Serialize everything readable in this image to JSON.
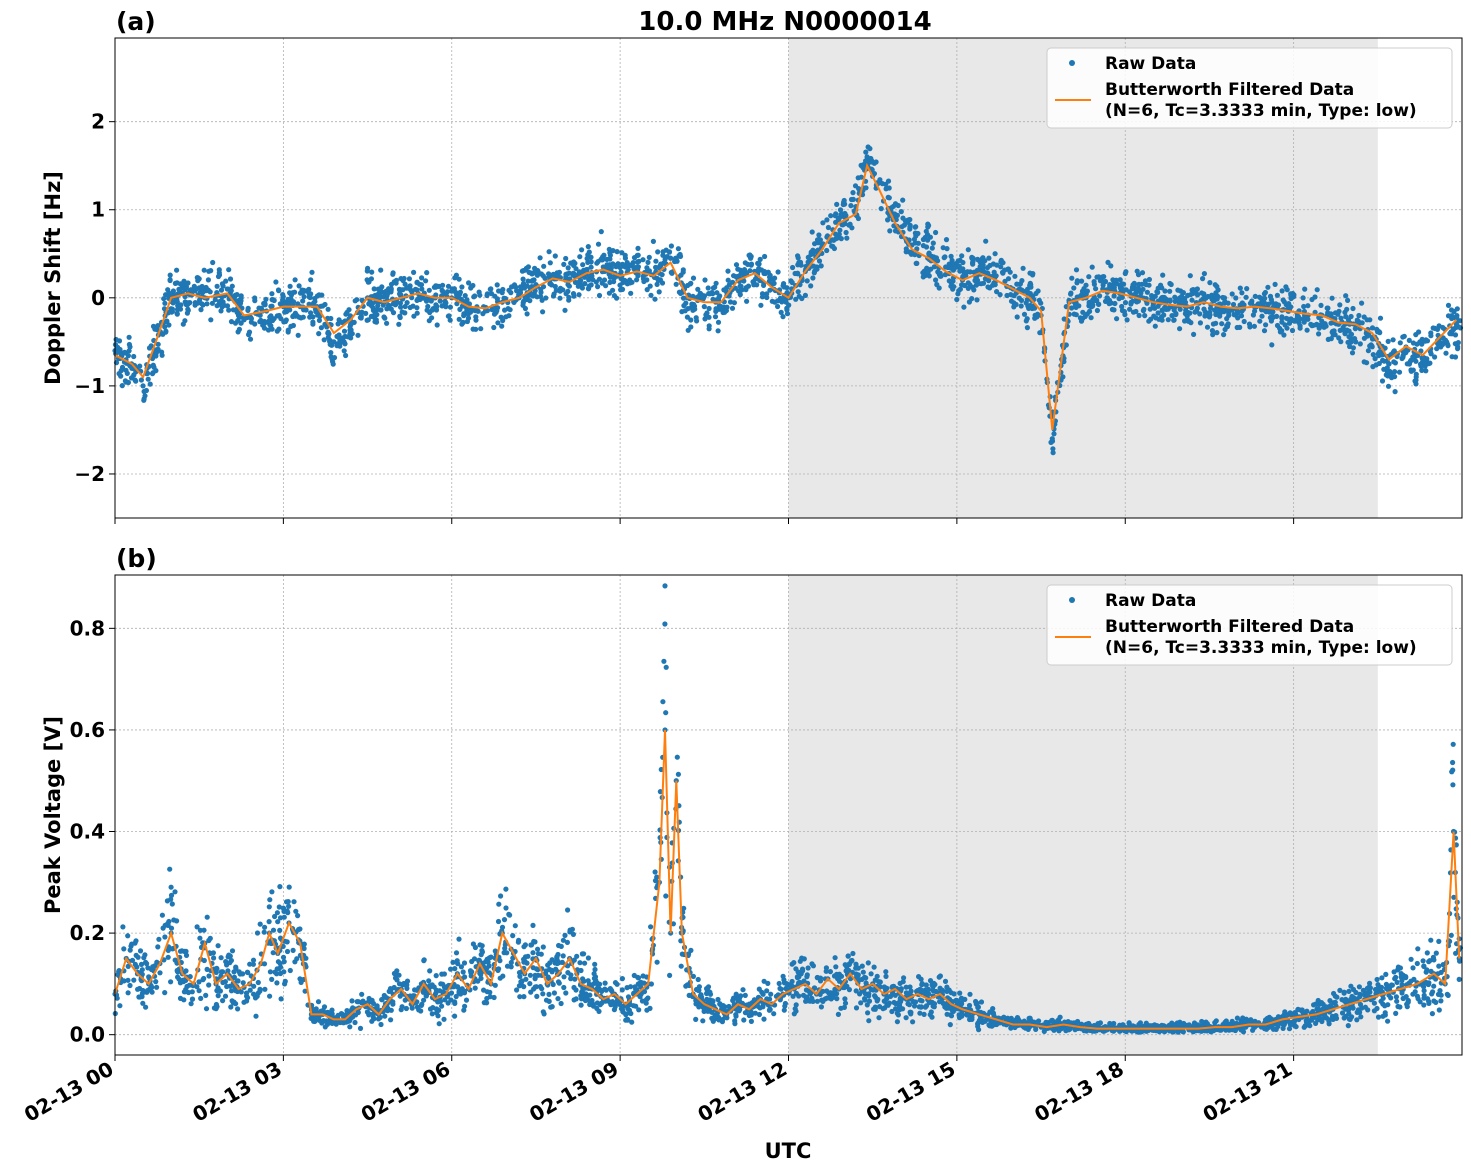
{
  "figure": {
    "title": "10.0 MHz N0000014",
    "xlabel": "UTC"
  },
  "colors": {
    "raw": "#1f77b4",
    "filtered": "#ff7f0e",
    "shade": "#e8e8e8",
    "grid": "#b0b0b0"
  },
  "chart_data": [
    {
      "type": "scatter",
      "panel_label": "(a)",
      "ylabel": "Doppler Shift [Hz]",
      "xlim": [
        "02-13 00:00",
        "02-14 00:00"
      ],
      "x_unit_hours_from": "02-13 00:00",
      "ylim": [
        -2.5,
        2.95
      ],
      "y_ticks": [
        -2,
        -1,
        0,
        1,
        2
      ],
      "y_tick_labels": [
        "−2",
        "−1",
        "0",
        "1",
        "2"
      ],
      "x_ticks": [
        "02-13 00",
        "02-13 03",
        "02-13 06",
        "02-13 09",
        "02-13 12",
        "02-13 15",
        "02-13 18",
        "02-13 21"
      ],
      "grid": true,
      "legend_position": "upper right",
      "shaded_interval": [
        "02-13 12:00",
        "02-13 22:30"
      ],
      "series": [
        {
          "name": "Raw Data",
          "kind": "dots",
          "x_hours": [
            0,
            0.3,
            0.5,
            0.7,
            1.0,
            1.3,
            1.6,
            2.0,
            2.3,
            2.7,
            3.0,
            3.3,
            3.6,
            3.9,
            4.2,
            4.5,
            4.8,
            5.1,
            5.4,
            5.7,
            6.0,
            6.3,
            6.6,
            6.9,
            7.2,
            7.5,
            7.8,
            8.1,
            8.4,
            8.7,
            9.0,
            9.3,
            9.6,
            9.9,
            10.2,
            10.5,
            10.8,
            11.1,
            11.4,
            11.7,
            12.0,
            12.3,
            12.6,
            12.9,
            13.2,
            13.4,
            13.6,
            13.9,
            14.2,
            14.5,
            14.8,
            15.1,
            15.4,
            15.7,
            16.0,
            16.3,
            16.5,
            16.7,
            17.0,
            17.3,
            17.6,
            17.9,
            18.2,
            18.5,
            18.8,
            19.1,
            19.4,
            19.7,
            20.0,
            20.3,
            20.6,
            20.9,
            21.2,
            21.5,
            21.8,
            22.1,
            22.4,
            22.7,
            23.0,
            23.3,
            23.6,
            23.9
          ],
          "y": [
            -0.6,
            -0.8,
            -1.0,
            -0.6,
            0.0,
            0.05,
            0.0,
            0.1,
            -0.25,
            -0.15,
            -0.1,
            -0.1,
            -0.1,
            -0.5,
            -0.3,
            0.0,
            -0.05,
            0.0,
            0.05,
            0.0,
            0.0,
            -0.1,
            -0.15,
            -0.05,
            0.0,
            0.15,
            0.25,
            0.2,
            0.3,
            0.35,
            0.25,
            0.35,
            0.25,
            0.45,
            0.0,
            -0.1,
            -0.1,
            0.2,
            0.3,
            0.15,
            0.0,
            0.3,
            0.6,
            0.9,
            1.0,
            1.6,
            1.3,
            0.9,
            0.6,
            0.5,
            0.35,
            0.2,
            0.3,
            0.25,
            0.1,
            0.0,
            -0.2,
            -1.6,
            -0.05,
            0.0,
            0.1,
            0.05,
            0.0,
            -0.05,
            -0.1,
            -0.1,
            -0.05,
            -0.1,
            -0.15,
            -0.1,
            -0.15,
            -0.15,
            -0.2,
            -0.2,
            -0.3,
            -0.35,
            -0.45,
            -0.75,
            -0.6,
            -0.7,
            -0.5,
            -0.3
          ]
        },
        {
          "name": "Butterworth Filtered Data\n(N=6, Tc=3.3333 min, Type: low)",
          "kind": "line",
          "x_hours": [
            0,
            0.3,
            0.5,
            0.7,
            1.0,
            1.3,
            1.6,
            2.0,
            2.3,
            2.7,
            3.0,
            3.3,
            3.6,
            3.9,
            4.2,
            4.5,
            4.8,
            5.1,
            5.4,
            5.7,
            6.0,
            6.3,
            6.6,
            6.9,
            7.2,
            7.5,
            7.8,
            8.1,
            8.4,
            8.7,
            9.0,
            9.3,
            9.6,
            9.9,
            10.2,
            10.5,
            10.8,
            11.1,
            11.4,
            11.7,
            12.0,
            12.3,
            12.6,
            12.9,
            13.2,
            13.4,
            13.6,
            13.9,
            14.2,
            14.5,
            14.8,
            15.1,
            15.4,
            15.7,
            16.0,
            16.3,
            16.5,
            16.7,
            17.0,
            17.3,
            17.6,
            17.9,
            18.2,
            18.5,
            18.8,
            19.1,
            19.4,
            19.7,
            20.0,
            20.3,
            20.6,
            20.9,
            21.2,
            21.5,
            21.8,
            22.1,
            22.4,
            22.7,
            23.0,
            23.3,
            23.6,
            23.9
          ],
          "y": [
            -0.65,
            -0.75,
            -0.9,
            -0.55,
            0.0,
            0.05,
            0.0,
            0.05,
            -0.2,
            -0.15,
            -0.1,
            -0.1,
            -0.1,
            -0.4,
            -0.25,
            0.0,
            -0.05,
            0.0,
            0.05,
            0.0,
            0.0,
            -0.1,
            -0.12,
            -0.05,
            0.0,
            0.12,
            0.22,
            0.18,
            0.28,
            0.32,
            0.25,
            0.3,
            0.25,
            0.4,
            0.0,
            -0.05,
            -0.05,
            0.2,
            0.28,
            0.12,
            0.0,
            0.3,
            0.55,
            0.85,
            0.95,
            1.5,
            1.25,
            0.85,
            0.55,
            0.45,
            0.3,
            0.2,
            0.28,
            0.2,
            0.1,
            0.0,
            -0.15,
            -1.5,
            -0.05,
            0.0,
            0.08,
            0.05,
            0.0,
            -0.05,
            -0.08,
            -0.1,
            -0.05,
            -0.1,
            -0.12,
            -0.1,
            -0.12,
            -0.15,
            -0.18,
            -0.2,
            -0.28,
            -0.3,
            -0.4,
            -0.7,
            -0.55,
            -0.65,
            -0.45,
            -0.25
          ]
        }
      ]
    },
    {
      "type": "scatter",
      "panel_label": "(b)",
      "ylabel": "Peak Voltage [V]",
      "xlim": [
        "02-13 00:00",
        "02-14 00:00"
      ],
      "x_unit_hours_from": "02-13 00:00",
      "ylim": [
        -0.04,
        0.905
      ],
      "y_ticks": [
        0.0,
        0.2,
        0.4,
        0.6,
        0.8
      ],
      "y_tick_labels": [
        "0.0",
        "0.2",
        "0.4",
        "0.6",
        "0.8"
      ],
      "x_ticks": [
        "02-13 00",
        "02-13 03",
        "02-13 06",
        "02-13 09",
        "02-13 12",
        "02-13 15",
        "02-13 18",
        "02-13 21"
      ],
      "grid": true,
      "legend_position": "upper right",
      "shaded_interval": [
        "02-13 12:00",
        "02-13 22:30"
      ],
      "series": [
        {
          "name": "Raw Data",
          "kind": "dots",
          "x_hours": [
            0,
            0.2,
            0.4,
            0.6,
            0.8,
            1.0,
            1.2,
            1.4,
            1.6,
            1.8,
            2.0,
            2.2,
            2.4,
            2.6,
            2.75,
            2.9,
            3.1,
            3.3,
            3.5,
            3.7,
            3.9,
            4.1,
            4.3,
            4.5,
            4.7,
            4.9,
            5.1,
            5.3,
            5.5,
            5.7,
            5.9,
            6.1,
            6.3,
            6.5,
            6.7,
            6.9,
            7.1,
            7.3,
            7.5,
            7.7,
            7.9,
            8.1,
            8.3,
            8.5,
            8.7,
            8.9,
            9.1,
            9.3,
            9.5,
            9.7,
            9.8,
            9.9,
            10.0,
            10.1,
            10.3,
            10.5,
            10.7,
            10.9,
            11.1,
            11.3,
            11.5,
            11.7,
            11.9,
            12.1,
            12.3,
            12.5,
            12.7,
            12.9,
            13.1,
            13.3,
            13.5,
            13.7,
            13.9,
            14.1,
            14.3,
            14.5,
            14.7,
            14.9,
            15.1,
            15.4,
            15.7,
            16.0,
            16.3,
            16.6,
            16.9,
            17.2,
            17.5,
            17.8,
            18.1,
            18.4,
            18.7,
            19.0,
            19.3,
            19.6,
            19.9,
            20.2,
            20.5,
            20.8,
            21.1,
            21.4,
            21.7,
            22.0,
            22.3,
            22.6,
            22.9,
            23.2,
            23.5,
            23.7,
            23.85,
            23.95
          ],
          "y": [
            0.08,
            0.15,
            0.12,
            0.1,
            0.14,
            0.2,
            0.12,
            0.1,
            0.18,
            0.1,
            0.12,
            0.09,
            0.1,
            0.14,
            0.2,
            0.16,
            0.22,
            0.18,
            0.04,
            0.04,
            0.03,
            0.03,
            0.05,
            0.06,
            0.04,
            0.07,
            0.09,
            0.06,
            0.1,
            0.07,
            0.08,
            0.12,
            0.09,
            0.14,
            0.1,
            0.2,
            0.16,
            0.12,
            0.15,
            0.1,
            0.12,
            0.15,
            0.1,
            0.09,
            0.07,
            0.08,
            0.06,
            0.08,
            0.1,
            0.3,
            0.6,
            0.2,
            0.5,
            0.2,
            0.08,
            0.06,
            0.05,
            0.04,
            0.06,
            0.05,
            0.07,
            0.06,
            0.08,
            0.09,
            0.1,
            0.08,
            0.11,
            0.09,
            0.12,
            0.09,
            0.1,
            0.08,
            0.09,
            0.07,
            0.08,
            0.07,
            0.08,
            0.06,
            0.05,
            0.04,
            0.03,
            0.02,
            0.02,
            0.015,
            0.02,
            0.015,
            0.012,
            0.012,
            0.012,
            0.012,
            0.012,
            0.012,
            0.012,
            0.015,
            0.015,
            0.02,
            0.02,
            0.03,
            0.035,
            0.04,
            0.05,
            0.06,
            0.07,
            0.08,
            0.09,
            0.1,
            0.12,
            0.1,
            0.4,
            0.15
          ]
        },
        {
          "name": "Butterworth Filtered Data\n(N=6, Tc=3.3333 min, Type: low)",
          "kind": "line",
          "x_hours": [
            0,
            0.2,
            0.4,
            0.6,
            0.8,
            1.0,
            1.2,
            1.4,
            1.6,
            1.8,
            2.0,
            2.2,
            2.4,
            2.6,
            2.75,
            2.9,
            3.1,
            3.3,
            3.5,
            3.7,
            3.9,
            4.1,
            4.3,
            4.5,
            4.7,
            4.9,
            5.1,
            5.3,
            5.5,
            5.7,
            5.9,
            6.1,
            6.3,
            6.5,
            6.7,
            6.9,
            7.1,
            7.3,
            7.5,
            7.7,
            7.9,
            8.1,
            8.3,
            8.5,
            8.7,
            8.9,
            9.1,
            9.3,
            9.5,
            9.7,
            9.8,
            9.9,
            10.0,
            10.1,
            10.3,
            10.5,
            10.7,
            10.9,
            11.1,
            11.3,
            11.5,
            11.7,
            11.9,
            12.1,
            12.3,
            12.5,
            12.7,
            12.9,
            13.1,
            13.3,
            13.5,
            13.7,
            13.9,
            14.1,
            14.3,
            14.5,
            14.7,
            14.9,
            15.1,
            15.4,
            15.7,
            16.0,
            16.3,
            16.6,
            16.9,
            17.2,
            17.5,
            17.8,
            18.1,
            18.4,
            18.7,
            19.0,
            19.3,
            19.6,
            19.9,
            20.2,
            20.5,
            20.8,
            21.1,
            21.4,
            21.7,
            22.0,
            22.3,
            22.6,
            22.9,
            23.2,
            23.5,
            23.7,
            23.85,
            23.95
          ],
          "y": [
            0.08,
            0.15,
            0.12,
            0.1,
            0.14,
            0.2,
            0.12,
            0.1,
            0.18,
            0.1,
            0.12,
            0.09,
            0.1,
            0.14,
            0.2,
            0.16,
            0.22,
            0.18,
            0.04,
            0.04,
            0.03,
            0.03,
            0.05,
            0.06,
            0.04,
            0.07,
            0.09,
            0.06,
            0.1,
            0.07,
            0.08,
            0.12,
            0.09,
            0.14,
            0.1,
            0.2,
            0.16,
            0.12,
            0.15,
            0.1,
            0.12,
            0.15,
            0.1,
            0.09,
            0.07,
            0.08,
            0.06,
            0.08,
            0.1,
            0.3,
            0.6,
            0.2,
            0.5,
            0.2,
            0.08,
            0.06,
            0.05,
            0.04,
            0.06,
            0.05,
            0.07,
            0.06,
            0.08,
            0.09,
            0.1,
            0.08,
            0.11,
            0.09,
            0.12,
            0.09,
            0.1,
            0.08,
            0.09,
            0.07,
            0.08,
            0.07,
            0.08,
            0.06,
            0.05,
            0.04,
            0.03,
            0.02,
            0.02,
            0.015,
            0.02,
            0.015,
            0.012,
            0.012,
            0.012,
            0.012,
            0.012,
            0.012,
            0.012,
            0.015,
            0.015,
            0.02,
            0.02,
            0.03,
            0.035,
            0.04,
            0.05,
            0.06,
            0.07,
            0.08,
            0.09,
            0.1,
            0.12,
            0.1,
            0.4,
            0.15
          ]
        }
      ]
    }
  ]
}
